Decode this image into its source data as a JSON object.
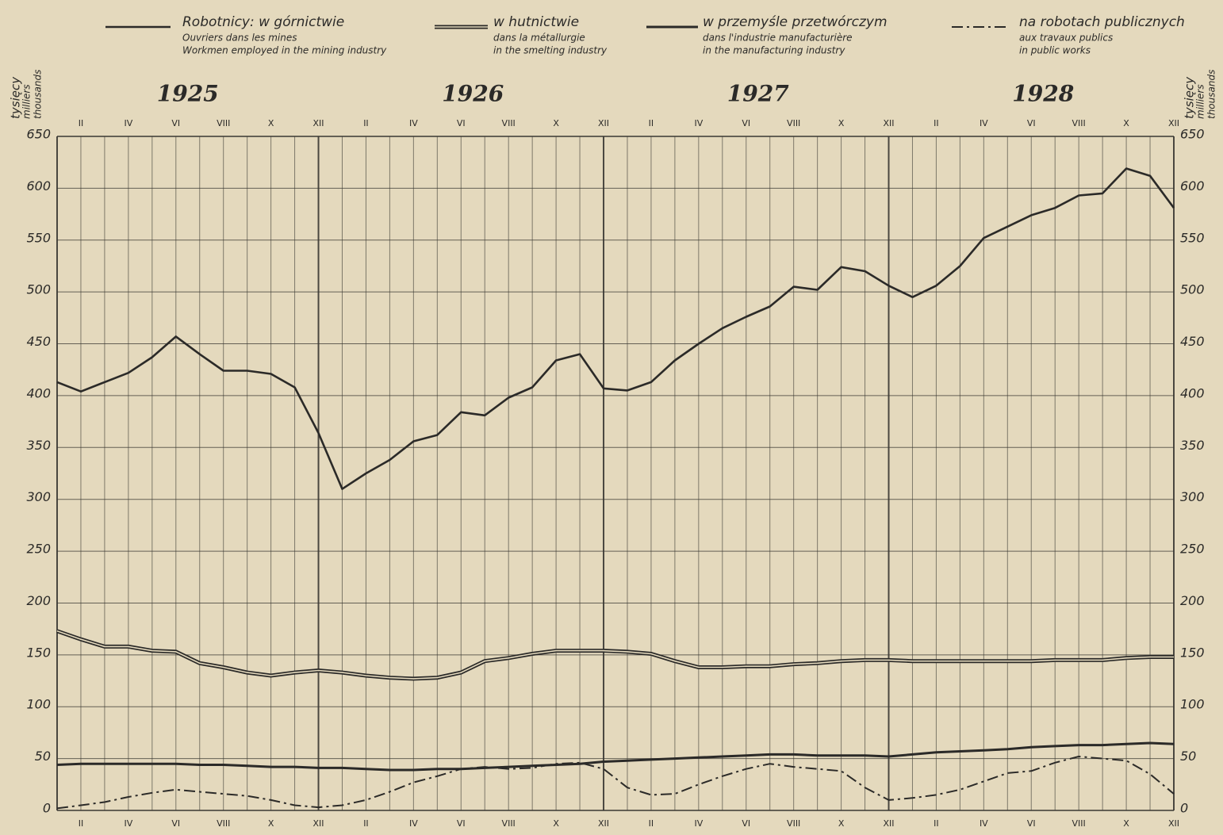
{
  "chart_data": {
    "type": "line",
    "axis_label": [
      "tysięcy",
      "milliers",
      "thousands"
    ],
    "years": [
      "1925",
      "1926",
      "1927",
      "1928"
    ],
    "categories": [
      null,
      "II",
      null,
      "IV",
      null,
      "VI",
      null,
      "VIII",
      null,
      "X",
      null,
      "XII",
      null,
      "II",
      null,
      "IV",
      null,
      "VI",
      null,
      "VIII",
      null,
      "X",
      null,
      "XII",
      null,
      "II",
      null,
      "IV",
      null,
      "VI",
      null,
      "VIII",
      null,
      "X",
      null,
      "XII",
      null,
      "II",
      null,
      "IV",
      null,
      "VI",
      null,
      "VIII",
      null,
      "X",
      null,
      "XII"
    ],
    "ylim": [
      0,
      650
    ],
    "yticks": [
      0,
      50,
      100,
      150,
      200,
      250,
      300,
      350,
      400,
      450,
      500,
      550,
      600,
      650
    ],
    "grid": true,
    "series": [
      {
        "name": "Robotnicy: w górnictwie",
        "name_fr": "Ouvriers dans les mines",
        "name_en": "Workmen employed in the mining industry",
        "color": "#2b2a28",
        "style": "solid",
        "values": [
          413,
          404,
          413,
          422,
          437,
          457,
          440,
          424,
          424,
          421,
          408,
          364,
          310,
          325,
          338,
          356,
          362,
          384,
          381,
          398,
          408,
          434,
          440,
          407,
          405,
          413,
          434,
          450,
          465,
          476,
          486,
          505,
          502,
          524,
          520,
          506,
          495,
          506,
          525,
          552,
          563,
          574,
          581,
          593,
          595,
          619,
          612,
          581
        ]
      },
      {
        "name": "w hutnictwie",
        "name_fr": "dans la métallurgie",
        "name_en": "in the smelting industry",
        "color": "#2b2a28",
        "style": "double",
        "values": [
          173,
          165,
          158,
          158,
          154,
          153,
          142,
          138,
          133,
          130,
          133,
          135,
          133,
          130,
          128,
          127,
          128,
          133,
          144,
          147,
          151,
          154,
          154,
          154,
          153,
          151,
          144,
          138,
          138,
          139,
          139,
          141,
          142,
          144,
          145,
          145,
          144,
          144,
          144,
          144,
          144,
          144,
          145,
          145,
          145,
          147,
          148,
          148
        ]
      },
      {
        "name": "w przemyśle przetwórczym",
        "name_fr": "dans l'industrie manufacturière",
        "name_en": "in the manufacturing industry",
        "color": "#2b2a28",
        "style": "bold",
        "values": [
          44,
          45,
          45,
          45,
          45,
          45,
          44,
          44,
          43,
          42,
          42,
          41,
          41,
          40,
          39,
          39,
          40,
          40,
          41,
          42,
          43,
          44,
          45,
          47,
          48,
          49,
          50,
          51,
          52,
          53,
          54,
          54,
          53,
          53,
          53,
          52,
          54,
          56,
          57,
          58,
          59,
          61,
          62,
          63,
          63,
          64,
          65,
          64
        ]
      },
      {
        "name": "na robotach publicznych",
        "name_fr": "aux travaux publics",
        "name_en": "in public works",
        "color": "#2b2a28",
        "style": "dashdot",
        "values": [
          2,
          5,
          8,
          13,
          17,
          20,
          18,
          16,
          14,
          10,
          5,
          3,
          5,
          10,
          18,
          27,
          33,
          40,
          42,
          40,
          41,
          45,
          46,
          40,
          22,
          15,
          16,
          25,
          33,
          40,
          45,
          42,
          40,
          38,
          22,
          10,
          12,
          15,
          20,
          28,
          36,
          38,
          46,
          52,
          50,
          48,
          35,
          16
        ]
      }
    ]
  }
}
